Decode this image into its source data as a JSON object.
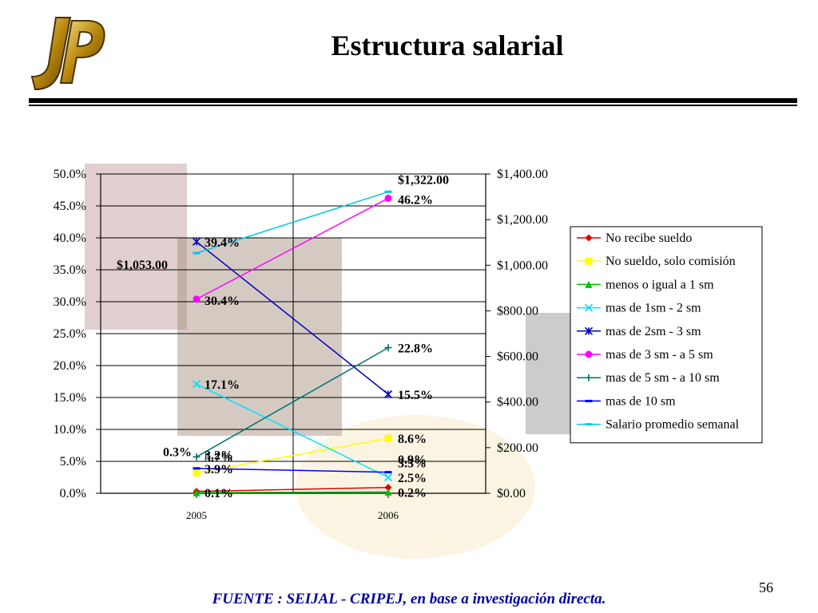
{
  "title": "Estructura salarial",
  "source": "FUENTE :  SEIJAL - CRIPEJ,  en base a investigación directa.",
  "page_number": "56",
  "logo": {
    "letters": "JP",
    "color": "#b8860b"
  },
  "chart_data": {
    "type": "line",
    "categories": [
      "2005",
      "2006"
    ],
    "y_left": {
      "min": 0,
      "max": 50,
      "step": 5,
      "ticks": [
        "0.0%",
        "5.0%",
        "10.0%",
        "15.0%",
        "20.0%",
        "25.0%",
        "30.0%",
        "35.0%",
        "40.0%",
        "45.0%",
        "50.0%"
      ]
    },
    "y_right": {
      "min": 0,
      "max": 1400,
      "step": 200,
      "ticks": [
        "$0.00",
        "$200.00",
        "$400.00",
        "$600.00",
        "$800.00",
        "$1,000.00",
        "$1,200.00",
        "$1,400.00"
      ]
    },
    "legend_position": "right",
    "grid": true,
    "series": [
      {
        "name": "No recibe sueldo",
        "axis": "left",
        "values": [
          0.3,
          0.9
        ],
        "color": "#e00000",
        "marker": "diamond",
        "labels": [
          "0.3%",
          "0.9%"
        ]
      },
      {
        "name": "No sueldo, solo comisión",
        "axis": "left",
        "values": [
          3.2,
          8.6
        ],
        "color": "#ffff00",
        "marker": "square",
        "labels": [
          "3.2%",
          "8.6%"
        ]
      },
      {
        "name": "menos o igual a 1 sm",
        "axis": "left",
        "values": [
          0.1,
          0.2
        ],
        "color": "#00c000",
        "marker": "triangle",
        "labels": [
          "0.1%",
          "0.2%"
        ]
      },
      {
        "name": "mas de 1sm - 2 sm",
        "axis": "left",
        "values": [
          17.1,
          2.5
        ],
        "color": "#00e0ff",
        "marker": "x",
        "labels": [
          "17.1%",
          "2.5%"
        ]
      },
      {
        "name": "mas de 2sm - 3 sm",
        "axis": "left",
        "values": [
          39.4,
          15.5
        ],
        "color": "#0000c0",
        "marker": "star",
        "labels": [
          "39.4%",
          "15.5%"
        ]
      },
      {
        "name": "mas de 3 sm - a 5 sm",
        "axis": "left",
        "values": [
          30.4,
          46.2
        ],
        "color": "#ff00ff",
        "marker": "circle",
        "labels": [
          "30.4%",
          "46.2%"
        ]
      },
      {
        "name": "mas de 5 sm - a 10 sm",
        "axis": "left",
        "values": [
          5.7,
          22.8
        ],
        "color": "#007070",
        "marker": "plus",
        "labels": [
          "5.7%",
          "22.8%"
        ]
      },
      {
        "name": "mas de 10 sm",
        "axis": "left",
        "values": [
          3.9,
          3.3
        ],
        "color": "#0000ff",
        "marker": "dash",
        "labels": [
          "3.9%",
          "3.3%"
        ]
      },
      {
        "name": "Salario promedio semanal",
        "axis": "right",
        "values": [
          1053,
          1322
        ],
        "color": "#00c8e8",
        "marker": "dash",
        "labels": [
          "$1,053.00",
          "$1,322.00"
        ]
      }
    ]
  }
}
